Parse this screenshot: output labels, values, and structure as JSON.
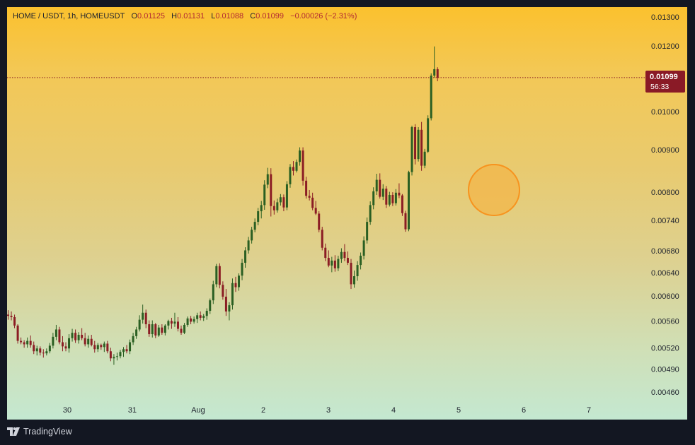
{
  "legend": {
    "symbol": "HOME / USDT, 1h, HOMEUSDT",
    "o_label": "O",
    "open": "0.01125",
    "h_label": "H",
    "high": "0.01131",
    "l_label": "L",
    "low": "0.01088",
    "c_label": "C",
    "close": "0.01099",
    "change": "−0.00026 (−2.31%)"
  },
  "price_label": {
    "price": "0.01099",
    "countdown": "56:33"
  },
  "branding": {
    "logo_text": "TradingView"
  },
  "colors": {
    "up": "#2a5f22",
    "down": "#8b1d24",
    "price_line": "#8b1d24",
    "marker_fill": "#f3b54a",
    "marker_stroke": "#f7931e"
  },
  "chart_data": {
    "type": "candlestick",
    "scale": "log",
    "y_ticks": [
      "0.01300",
      "0.01200",
      "0.01000",
      "0.00900",
      "0.00800",
      "0.00740",
      "0.00680",
      "0.00640",
      "0.00600",
      "0.00560",
      "0.00520",
      "0.00490",
      "0.00460"
    ],
    "x_ticks": [
      "30",
      "31",
      "Aug",
      "2",
      "3",
      "4",
      "5",
      "6",
      "7"
    ],
    "current_price": 0.01099,
    "candles": [
      [
        0.0057,
        0.00577,
        0.00562,
        0.00568
      ],
      [
        0.00568,
        0.00575,
        0.00561,
        0.00566
      ],
      [
        0.00566,
        0.0057,
        0.00549,
        0.00553
      ],
      [
        0.00553,
        0.00555,
        0.00526,
        0.0053
      ],
      [
        0.0053,
        0.00535,
        0.00525,
        0.00528
      ],
      [
        0.00528,
        0.00531,
        0.0052,
        0.00525
      ],
      [
        0.00525,
        0.00535,
        0.0052,
        0.0053
      ],
      [
        0.0053,
        0.00538,
        0.0052,
        0.00524
      ],
      [
        0.00524,
        0.00529,
        0.00511,
        0.00515
      ],
      [
        0.00515,
        0.00523,
        0.00509,
        0.00519
      ],
      [
        0.00519,
        0.00522,
        0.00509,
        0.00513
      ],
      [
        0.00513,
        0.00518,
        0.00506,
        0.00512
      ],
      [
        0.00512,
        0.00519,
        0.00509,
        0.00515
      ],
      [
        0.00515,
        0.00527,
        0.00512,
        0.00523
      ],
      [
        0.00523,
        0.00542,
        0.00519,
        0.00536
      ],
      [
        0.00536,
        0.00554,
        0.00531,
        0.00547
      ],
      [
        0.00547,
        0.00551,
        0.00525,
        0.00528
      ],
      [
        0.00528,
        0.00537,
        0.00515,
        0.00522
      ],
      [
        0.00522,
        0.00528,
        0.00515,
        0.00519
      ],
      [
        0.00519,
        0.0054,
        0.00513,
        0.00534
      ],
      [
        0.00534,
        0.00548,
        0.00529,
        0.00542
      ],
      [
        0.00542,
        0.00547,
        0.00527,
        0.00531
      ],
      [
        0.00531,
        0.00543,
        0.00526,
        0.00539
      ],
      [
        0.00539,
        0.00549,
        0.00531,
        0.00534
      ],
      [
        0.00534,
        0.00542,
        0.00522,
        0.00525
      ],
      [
        0.00525,
        0.00538,
        0.0052,
        0.00533
      ],
      [
        0.00533,
        0.00539,
        0.00522,
        0.00524
      ],
      [
        0.00524,
        0.0053,
        0.00513,
        0.00518
      ],
      [
        0.00518,
        0.00527,
        0.00514,
        0.00524
      ],
      [
        0.00524,
        0.00526,
        0.00517,
        0.00521
      ],
      [
        0.00521,
        0.00529,
        0.00514,
        0.00526
      ],
      [
        0.00526,
        0.0053,
        0.00512,
        0.00515
      ],
      [
        0.00515,
        0.0052,
        0.00501,
        0.00505
      ],
      [
        0.00505,
        0.00511,
        0.00496,
        0.00507
      ],
      [
        0.00507,
        0.00513,
        0.00502,
        0.00508
      ],
      [
        0.00508,
        0.00517,
        0.00505,
        0.00514
      ],
      [
        0.00514,
        0.00521,
        0.00507,
        0.00518
      ],
      [
        0.00518,
        0.00524,
        0.00512,
        0.00515
      ],
      [
        0.00515,
        0.00532,
        0.00511,
        0.00528
      ],
      [
        0.00528,
        0.00542,
        0.00524,
        0.00537
      ],
      [
        0.00537,
        0.00551,
        0.00533,
        0.00547
      ],
      [
        0.00547,
        0.00569,
        0.00544,
        0.00562
      ],
      [
        0.00562,
        0.00586,
        0.00556,
        0.00573
      ],
      [
        0.00573,
        0.00578,
        0.00549,
        0.00555
      ],
      [
        0.00555,
        0.00561,
        0.00536,
        0.0054
      ],
      [
        0.0054,
        0.00561,
        0.00535,
        0.00555
      ],
      [
        0.00555,
        0.00557,
        0.00534,
        0.00538
      ],
      [
        0.00538,
        0.00554,
        0.00536,
        0.0055
      ],
      [
        0.0055,
        0.00555,
        0.00539,
        0.00542
      ],
      [
        0.00542,
        0.00555,
        0.00538,
        0.00553
      ],
      [
        0.00553,
        0.00562,
        0.00547,
        0.0056
      ],
      [
        0.0056,
        0.00565,
        0.00548,
        0.00556
      ],
      [
        0.00556,
        0.00573,
        0.00551,
        0.00559
      ],
      [
        0.00559,
        0.00566,
        0.00544,
        0.00548
      ],
      [
        0.00548,
        0.00553,
        0.00539,
        0.00542
      ],
      [
        0.00542,
        0.00557,
        0.0054,
        0.00554
      ],
      [
        0.00554,
        0.00567,
        0.00551,
        0.00564
      ],
      [
        0.00564,
        0.00568,
        0.00555,
        0.00559
      ],
      [
        0.00559,
        0.00567,
        0.00556,
        0.00563
      ],
      [
        0.00563,
        0.00573,
        0.00557,
        0.00569
      ],
      [
        0.00569,
        0.00575,
        0.00561,
        0.00565
      ],
      [
        0.00565,
        0.00571,
        0.0056,
        0.00568
      ],
      [
        0.00568,
        0.0058,
        0.00562,
        0.00576
      ],
      [
        0.00576,
        0.00596,
        0.00571,
        0.00593
      ],
      [
        0.00593,
        0.00626,
        0.00587,
        0.0062
      ],
      [
        0.0062,
        0.00656,
        0.00615,
        0.00652
      ],
      [
        0.00652,
        0.00657,
        0.00613,
        0.00619
      ],
      [
        0.00619,
        0.00625,
        0.00594,
        0.00599
      ],
      [
        0.00599,
        0.00612,
        0.00568,
        0.00575
      ],
      [
        0.00575,
        0.0059,
        0.00561,
        0.00585
      ],
      [
        0.00585,
        0.0063,
        0.00578,
        0.00622
      ],
      [
        0.00622,
        0.00633,
        0.00607,
        0.00615
      ],
      [
        0.00615,
        0.00639,
        0.00609,
        0.00635
      ],
      [
        0.00635,
        0.00665,
        0.00627,
        0.00658
      ],
      [
        0.00658,
        0.00687,
        0.00649,
        0.00681
      ],
      [
        0.00681,
        0.00707,
        0.00675,
        0.007
      ],
      [
        0.007,
        0.00727,
        0.00694,
        0.00721
      ],
      [
        0.00721,
        0.00744,
        0.00716,
        0.00737
      ],
      [
        0.00737,
        0.00766,
        0.0073,
        0.00759
      ],
      [
        0.00759,
        0.00781,
        0.00744,
        0.00772
      ],
      [
        0.00772,
        0.00827,
        0.00762,
        0.00817
      ],
      [
        0.00817,
        0.00856,
        0.00809,
        0.00841
      ],
      [
        0.00841,
        0.00855,
        0.00748,
        0.0077
      ],
      [
        0.0077,
        0.00782,
        0.00752,
        0.00761
      ],
      [
        0.00761,
        0.00786,
        0.00756,
        0.00778
      ],
      [
        0.00778,
        0.00796,
        0.00771,
        0.00789
      ],
      [
        0.00789,
        0.00795,
        0.00759,
        0.00767
      ],
      [
        0.00767,
        0.00825,
        0.00761,
        0.00818
      ],
      [
        0.00818,
        0.00865,
        0.0081,
        0.00858
      ],
      [
        0.00858,
        0.00872,
        0.00838,
        0.00849
      ],
      [
        0.00849,
        0.00876,
        0.00845,
        0.0087
      ],
      [
        0.0087,
        0.00906,
        0.00861,
        0.00898
      ],
      [
        0.00898,
        0.00906,
        0.00815,
        0.00826
      ],
      [
        0.00826,
        0.00835,
        0.00786,
        0.00792
      ],
      [
        0.00792,
        0.00805,
        0.00782,
        0.00788
      ],
      [
        0.00788,
        0.00799,
        0.00761,
        0.00766
      ],
      [
        0.00766,
        0.00781,
        0.00751,
        0.00754
      ],
      [
        0.00754,
        0.00759,
        0.00716,
        0.00721
      ],
      [
        0.00721,
        0.00727,
        0.00681,
        0.00686
      ],
      [
        0.00686,
        0.00694,
        0.00661,
        0.00667
      ],
      [
        0.00667,
        0.00681,
        0.0065,
        0.00653
      ],
      [
        0.00653,
        0.00669,
        0.00641,
        0.00662
      ],
      [
        0.00662,
        0.00672,
        0.00642,
        0.00648
      ],
      [
        0.00648,
        0.00671,
        0.00643,
        0.00665
      ],
      [
        0.00665,
        0.00685,
        0.00658,
        0.00678
      ],
      [
        0.00678,
        0.00693,
        0.00661,
        0.00667
      ],
      [
        0.00667,
        0.00679,
        0.00654,
        0.00658
      ],
      [
        0.00658,
        0.00665,
        0.00612,
        0.0062
      ],
      [
        0.0062,
        0.00644,
        0.00614,
        0.00634
      ],
      [
        0.00634,
        0.00661,
        0.00626,
        0.00654
      ],
      [
        0.00654,
        0.00677,
        0.00646,
        0.00671
      ],
      [
        0.00671,
        0.00708,
        0.00664,
        0.007
      ],
      [
        0.007,
        0.00746,
        0.00694,
        0.00737
      ],
      [
        0.00737,
        0.0078,
        0.00731,
        0.00772
      ],
      [
        0.00772,
        0.00811,
        0.00763,
        0.00802
      ],
      [
        0.00802,
        0.00842,
        0.00794,
        0.00828
      ],
      [
        0.00828,
        0.00843,
        0.00786,
        0.0079
      ],
      [
        0.0079,
        0.00818,
        0.00783,
        0.00808
      ],
      [
        0.00808,
        0.00814,
        0.00766,
        0.00773
      ],
      [
        0.00773,
        0.00801,
        0.00769,
        0.00794
      ],
      [
        0.00794,
        0.008,
        0.0077,
        0.00776
      ],
      [
        0.00776,
        0.00807,
        0.00771,
        0.00799
      ],
      [
        0.00799,
        0.0082,
        0.00787,
        0.00793
      ],
      [
        0.00793,
        0.00796,
        0.00749,
        0.00755
      ],
      [
        0.00755,
        0.0076,
        0.00717,
        0.00722
      ],
      [
        0.00722,
        0.00849,
        0.00718,
        0.00846
      ],
      [
        0.00846,
        0.00962,
        0.00838,
        0.00958
      ],
      [
        0.00958,
        0.00966,
        0.00864,
        0.00877
      ],
      [
        0.00877,
        0.00958,
        0.00871,
        0.00951
      ],
      [
        0.00951,
        0.00972,
        0.00849,
        0.00861
      ],
      [
        0.00861,
        0.00902,
        0.00855,
        0.00895
      ],
      [
        0.00895,
        0.0099,
        0.00892,
        0.00982
      ],
      [
        0.00982,
        0.01112,
        0.00976,
        0.01105
      ],
      [
        0.01105,
        0.01198,
        0.01099,
        0.01125
      ],
      [
        0.01125,
        0.01131,
        0.01088,
        0.01099
      ]
    ]
  }
}
